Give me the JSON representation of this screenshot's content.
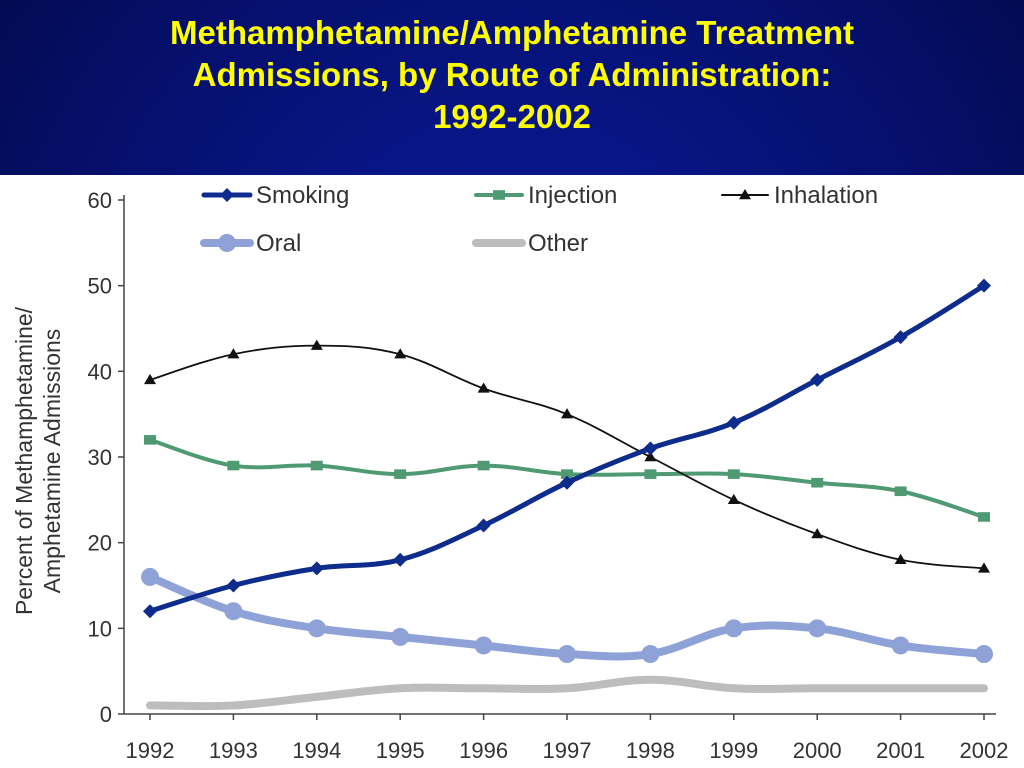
{
  "slide": {
    "title_lines": [
      "Methamphetamine/Amphetamine Treatment",
      "Admissions, by Route of Administration:",
      "1992-2002"
    ]
  },
  "chart_data": {
    "type": "line",
    "x": [
      "1992",
      "1993",
      "1994",
      "1995",
      "1996",
      "1997",
      "1998",
      "1999",
      "2000",
      "2001",
      "2002"
    ],
    "ylabel_lines": [
      "Percent of Methamphetamine/",
      "Amphetamine Admissions"
    ],
    "xlabel": "",
    "ylim": [
      0,
      60
    ],
    "yticks": [
      0,
      10,
      20,
      30,
      40,
      50,
      60
    ],
    "grid": false,
    "legend_position": "top",
    "series": [
      {
        "name": "Smoking",
        "color": "#0d2c8c",
        "marker": "diamond",
        "values": [
          12,
          15,
          17,
          18,
          22,
          27,
          31,
          34,
          39,
          44,
          50
        ]
      },
      {
        "name": "Injection",
        "color": "#4f9a72",
        "marker": "square",
        "values": [
          32,
          29,
          29,
          28,
          29,
          28,
          28,
          28,
          27,
          26,
          23
        ]
      },
      {
        "name": "Inhalation",
        "color": "#111111",
        "marker": "triangle",
        "values": [
          39,
          42,
          43,
          42,
          38,
          35,
          30,
          25,
          21,
          18,
          17
        ]
      },
      {
        "name": "Oral",
        "color": "#8ea2d8",
        "marker": "circle",
        "values": [
          16,
          12,
          10,
          9,
          8,
          7,
          7,
          10,
          10,
          8,
          7
        ]
      },
      {
        "name": "Other",
        "color": "#bdbdbd",
        "marker": "none",
        "values": [
          1,
          1,
          2,
          3,
          3,
          3,
          4,
          3,
          3,
          3,
          3
        ]
      }
    ]
  }
}
